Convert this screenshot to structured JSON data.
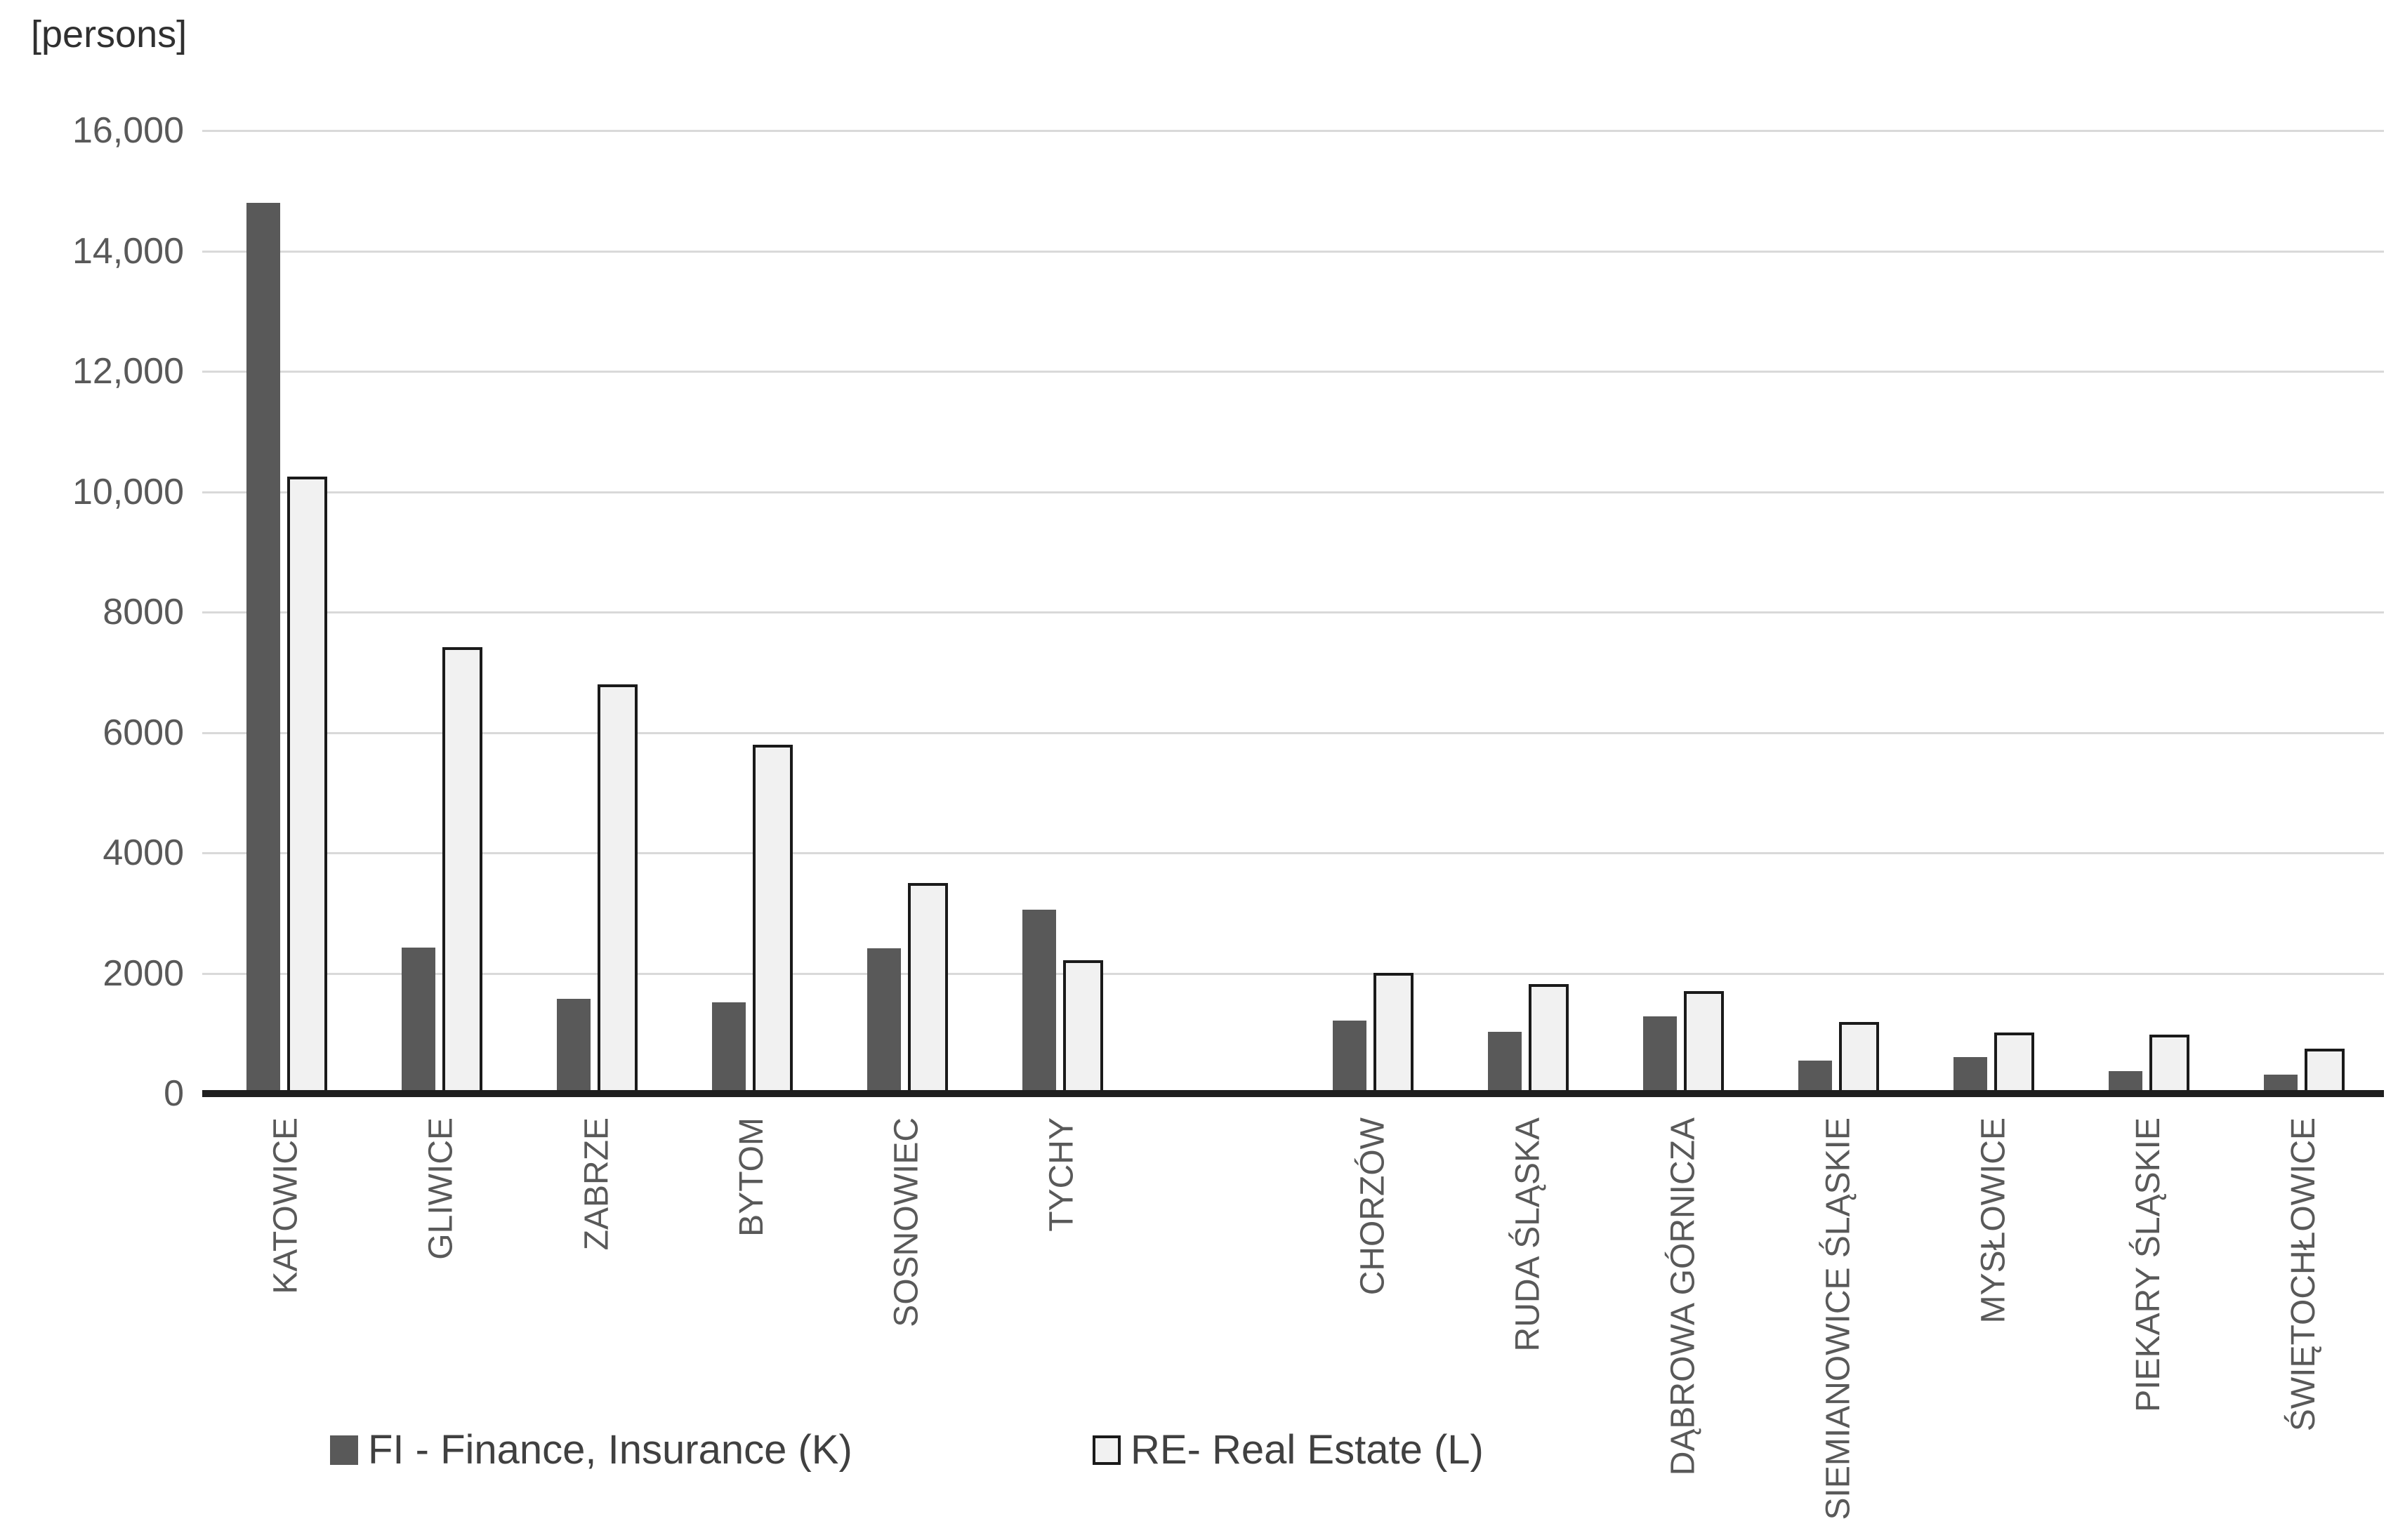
{
  "chart_data": {
    "type": "bar",
    "unit_label": "[persons]",
    "categories": [
      "KATOWICE",
      "GLIWICE",
      "ZABRZE",
      "BYTOM",
      "SOSNOWIEC",
      "TYCHY",
      "CHORZÓW",
      "RUDA ŚLĄSKA",
      "DĄBROWA GÓRNICZA",
      "SIEMIANOWICE ŚLĄSKIE",
      "MYSŁOWICE",
      "PIEKARY ŚLĄSKIE",
      "ŚWIĘTOCHŁOWICE"
    ],
    "series": [
      {
        "name": "FI - Finance, Insurance (K)",
        "values": [
          14800,
          2420,
          1580,
          1520,
          2410,
          3060,
          1210,
          1030,
          1280,
          550,
          610,
          375,
          320
        ],
        "fill": "#595959",
        "outline": null
      },
      {
        "name": "RE- Real Estate (L)",
        "values": [
          10250,
          7420,
          6800,
          5800,
          3500,
          2210,
          2000,
          1820,
          1700,
          1190,
          1020,
          980,
          750
        ],
        "fill": "#f1f1f1",
        "outline": "#1a1a1a"
      }
    ],
    "ylim": [
      0,
      16000
    ],
    "ytick_values": [
      0,
      2000,
      4000,
      6000,
      8000,
      10000,
      12000,
      14000,
      16000
    ],
    "ytick_labels": [
      "0",
      "2000",
      "4000",
      "6000",
      "8000",
      "10,000",
      "12,000",
      "14,000",
      "16,000"
    ],
    "grid": true,
    "legend_position": "bottom",
    "gap_after_category_index": 5,
    "colors": {
      "grid": "#d9d9d9",
      "axis": "#1f1f1f",
      "tick_text": "#595959",
      "category_text": "#595959",
      "legend_text": "#404040",
      "unit_text": "#303030",
      "background": "#ffffff"
    }
  }
}
